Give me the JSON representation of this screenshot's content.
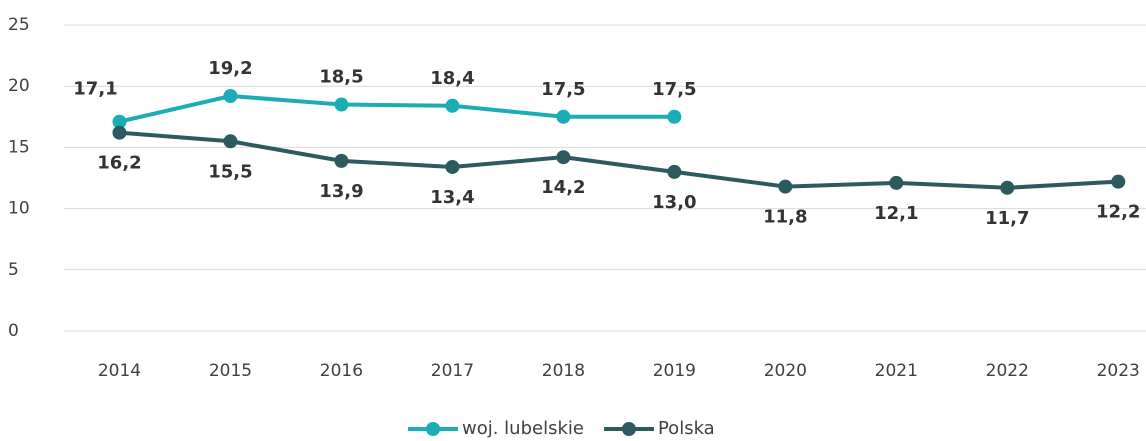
{
  "chart_data": {
    "type": "line",
    "categories": [
      "2014",
      "2015",
      "2016",
      "2017",
      "2018",
      "2019",
      "2020",
      "2021",
      "2022",
      "2023"
    ],
    "series": [
      {
        "name": "woj. lubelskie",
        "color": "#1aaeb4",
        "values": [
          17.1,
          19.2,
          18.5,
          18.4,
          17.5,
          17.5,
          null,
          null,
          null,
          null
        ],
        "value_labels": [
          "17,1",
          "19,2",
          "18,5",
          "18,4",
          "17,5",
          "17,5",
          null,
          null,
          null,
          null
        ]
      },
      {
        "name": "Polska",
        "color": "#2d5a5f",
        "values": [
          16.2,
          15.5,
          13.9,
          13.4,
          14.2,
          13.0,
          11.8,
          12.1,
          11.7,
          12.2
        ],
        "value_labels": [
          "16,2",
          "15,5",
          "13,9",
          "13,4",
          "14,2",
          "13,0",
          "11,8",
          "12,1",
          "11,7",
          "12,2"
        ]
      }
    ],
    "ylim": [
      0,
      25
    ],
    "yticks": [
      0,
      5,
      10,
      15,
      20,
      25
    ],
    "grid": true,
    "legend": "bottom"
  }
}
